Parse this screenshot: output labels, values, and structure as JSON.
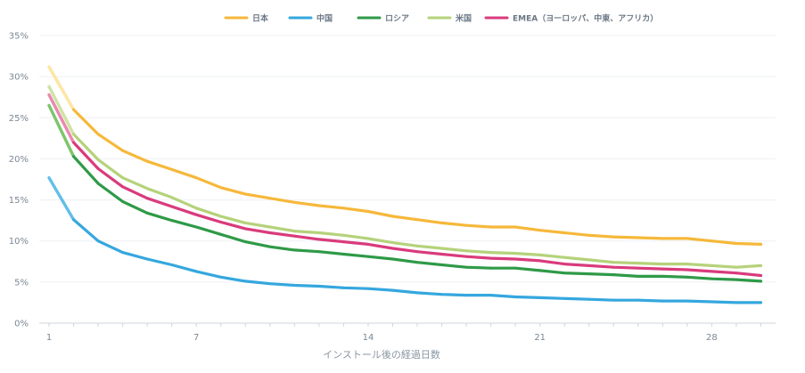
{
  "chart_data": {
    "type": "line",
    "xlabel": "インストール後の経過日数",
    "ylabel": "",
    "x": [
      1,
      2,
      3,
      4,
      5,
      6,
      7,
      8,
      9,
      10,
      11,
      12,
      13,
      14,
      15,
      16,
      17,
      18,
      19,
      20,
      21,
      22,
      23,
      24,
      25,
      26,
      27,
      28,
      29,
      30
    ],
    "xticks": [
      1,
      7,
      14,
      21,
      28
    ],
    "xlim": [
      0.6,
      30.6
    ],
    "yticks": [
      0,
      5,
      10,
      15,
      20,
      25,
      30,
      35
    ],
    "ytick_labels": [
      "0%",
      "5%",
      "10%",
      "15%",
      "20%",
      "25%",
      "30%",
      "35%"
    ],
    "ylim": [
      0,
      35
    ],
    "grid": "horizontal",
    "legend_position": "top",
    "series": [
      {
        "name": "日本",
        "color": "#f6b83a",
        "head_color": "#fde7a4",
        "values": [
          31.2,
          26.0,
          23.0,
          21.0,
          19.7,
          18.7,
          17.7,
          16.5,
          15.7,
          15.2,
          14.7,
          14.3,
          14.0,
          13.6,
          13.0,
          12.6,
          12.2,
          11.9,
          11.7,
          11.7,
          11.3,
          11.0,
          10.7,
          10.5,
          10.4,
          10.3,
          10.3,
          10.0,
          9.7,
          9.6
        ]
      },
      {
        "name": "中国",
        "color": "#35a7de",
        "head_color": "#63bfea",
        "values": [
          17.7,
          12.6,
          10.0,
          8.6,
          7.8,
          7.1,
          6.3,
          5.6,
          5.1,
          4.8,
          4.6,
          4.5,
          4.3,
          4.2,
          4.0,
          3.7,
          3.5,
          3.4,
          3.4,
          3.2,
          3.1,
          3.0,
          2.9,
          2.8,
          2.8,
          2.7,
          2.7,
          2.6,
          2.5,
          2.5
        ]
      },
      {
        "name": "ロシア",
        "color": "#2e9a47",
        "head_color": "#7cc76a",
        "values": [
          26.5,
          20.3,
          17.0,
          14.8,
          13.4,
          12.5,
          11.7,
          10.8,
          9.9,
          9.3,
          8.9,
          8.7,
          8.4,
          8.1,
          7.8,
          7.4,
          7.1,
          6.8,
          6.7,
          6.7,
          6.4,
          6.1,
          6.0,
          5.9,
          5.7,
          5.7,
          5.6,
          5.4,
          5.3,
          5.1
        ]
      },
      {
        "name": "米国",
        "color": "#b5d27a",
        "head_color": "#cfe3a3",
        "values": [
          28.8,
          23.0,
          19.9,
          17.7,
          16.4,
          15.3,
          14.0,
          13.0,
          12.2,
          11.7,
          11.2,
          11.0,
          10.7,
          10.3,
          9.8,
          9.4,
          9.1,
          8.8,
          8.6,
          8.5,
          8.3,
          8.0,
          7.7,
          7.4,
          7.3,
          7.2,
          7.2,
          7.0,
          6.8,
          7.0
        ]
      },
      {
        "name": "EMEA（ヨーロッパ、中東、アフリカ）",
        "color": "#d93b7c",
        "head_color": "#e98ab0",
        "values": [
          27.8,
          22.0,
          18.8,
          16.6,
          15.2,
          14.2,
          13.2,
          12.3,
          11.5,
          11.0,
          10.6,
          10.2,
          9.9,
          9.6,
          9.1,
          8.7,
          8.4,
          8.1,
          7.9,
          7.8,
          7.6,
          7.2,
          7.0,
          6.8,
          6.7,
          6.6,
          6.5,
          6.3,
          6.1,
          5.8
        ]
      }
    ]
  }
}
